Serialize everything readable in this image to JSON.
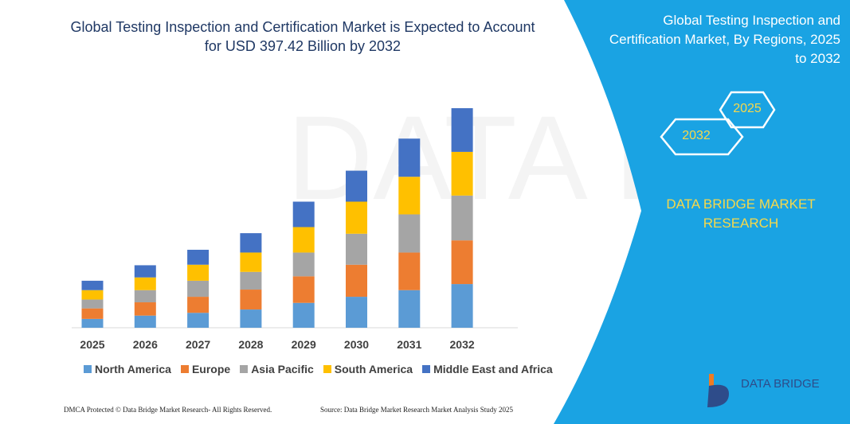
{
  "title": "Global Testing Inspection and Certification Market is Expected to Account for USD 397.42 Billion by 2032",
  "side_panel": {
    "title": "Global Testing Inspection and Certification Market, By Regions, 2025 to 2032",
    "hex_labels": [
      "2032",
      "2025"
    ],
    "brand": "DATA BRIDGE MARKET RESEARCH",
    "logo_text": "DATA BRIDGE"
  },
  "footer": {
    "left": "DMCA Protected © Data Bridge Market Research-  All Rights Reserved.",
    "right": "Source: Data Bridge Market Research  Market Analysis Study 2025"
  },
  "colors": {
    "panel": "#1aa3e3",
    "hex": "#f7d84a"
  },
  "chart_data": {
    "type": "bar",
    "stacked": true,
    "title": "Global Testing Inspection and Certification Market is Expected to Account for USD 397.42 Billion by 2032",
    "categories": [
      "2025",
      "2026",
      "2027",
      "2028",
      "2029",
      "2030",
      "2031",
      "2032"
    ],
    "legend_position": "bottom",
    "grid": false,
    "series": [
      {
        "name": "North America",
        "color": "#5b9bd5",
        "values": [
          16,
          22,
          27,
          33,
          45,
          56,
          68,
          79
        ]
      },
      {
        "name": "Europe",
        "color": "#ed7d31",
        "values": [
          19,
          24,
          29,
          36,
          48,
          58,
          68,
          79
        ]
      },
      {
        "name": "Asia Pacific",
        "color": "#a5a5a5",
        "values": [
          16,
          22,
          29,
          32,
          43,
          56,
          69,
          81
        ]
      },
      {
        "name": "South America",
        "color": "#ffc000",
        "values": [
          17,
          23,
          29,
          35,
          46,
          58,
          68,
          79
        ]
      },
      {
        "name": "Middle East and Africa",
        "color": "#4472c4",
        "values": [
          17,
          22,
          27,
          35,
          46,
          56,
          69,
          79
        ]
      }
    ]
  }
}
